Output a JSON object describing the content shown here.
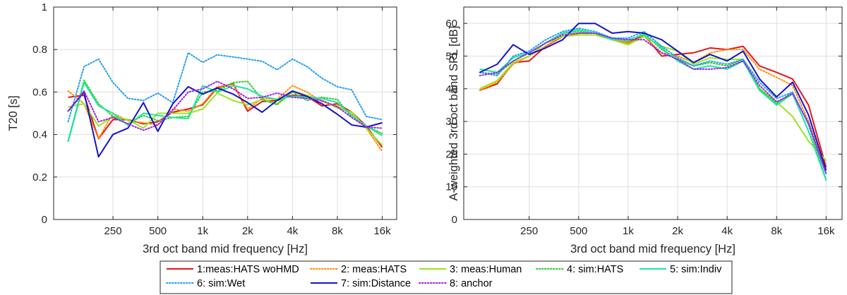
{
  "chart_data": [
    {
      "type": "line",
      "panel": "left",
      "xlabel": "3rd oct band mid frequency [Hz]",
      "ylabel": "T20 [s]",
      "ylim": [
        0,
        1
      ],
      "yticks": [
        0,
        0.2,
        0.4,
        0.6,
        0.8,
        1
      ],
      "ytick_labels": [
        "0",
        "0.2",
        "0.4",
        "0.6",
        "0.8",
        "1"
      ],
      "grid": true,
      "x": [
        125,
        160,
        200,
        250,
        315,
        400,
        500,
        630,
        800,
        1000,
        1250,
        1600,
        2000,
        2500,
        3150,
        4000,
        5000,
        6300,
        8000,
        10000,
        12500,
        16000
      ],
      "xticks": [
        250,
        500,
        1000,
        2000,
        4000,
        8000,
        16000
      ],
      "xtick_labels": [
        "250",
        "500",
        "1k",
        "2k",
        "4k",
        "8k",
        "16k"
      ],
      "series": [
        {
          "name": "1:meas:HATS woHMD",
          "values": [
            0.575,
            0.585,
            0.38,
            0.47,
            0.47,
            0.45,
            0.46,
            0.505,
            0.52,
            0.54,
            0.62,
            0.64,
            0.51,
            0.555,
            0.56,
            0.585,
            0.58,
            0.535,
            0.545,
            0.505,
            0.44,
            0.34
          ]
        },
        {
          "name": "2: meas:HATS",
          "values": [
            0.605,
            0.545,
            0.38,
            0.5,
            0.465,
            0.455,
            0.445,
            0.52,
            0.51,
            0.545,
            0.625,
            0.635,
            0.52,
            0.57,
            0.565,
            0.63,
            0.6,
            0.555,
            0.535,
            0.495,
            0.43,
            0.32
          ]
        },
        {
          "name": "3: meas:Human",
          "values": [
            0.53,
            0.545,
            0.44,
            0.485,
            0.47,
            0.43,
            0.5,
            0.5,
            0.5,
            0.52,
            0.595,
            0.56,
            0.54,
            0.565,
            0.545,
            0.605,
            0.585,
            0.56,
            0.525,
            0.505,
            0.43,
            0.35
          ]
        },
        {
          "name": "4: sim:HATS",
          "values": [
            0.37,
            0.655,
            0.545,
            0.485,
            0.45,
            0.49,
            0.465,
            0.48,
            0.485,
            0.6,
            0.605,
            0.645,
            0.65,
            0.565,
            0.54,
            0.6,
            0.56,
            0.575,
            0.565,
            0.48,
            0.44,
            0.405
          ]
        },
        {
          "name": "5: sim:Indiv",
          "values": [
            0.365,
            0.645,
            0.535,
            0.5,
            0.445,
            0.5,
            0.49,
            0.48,
            0.475,
            0.63,
            0.6,
            0.63,
            0.615,
            0.58,
            0.565,
            0.58,
            0.575,
            0.57,
            0.55,
            0.49,
            0.44,
            0.395
          ]
        },
        {
          "name": "6: sim:Wet",
          "values": [
            0.46,
            0.72,
            0.755,
            0.645,
            0.57,
            0.56,
            0.595,
            0.55,
            0.785,
            0.74,
            0.775,
            0.765,
            0.755,
            0.745,
            0.705,
            0.755,
            0.72,
            0.665,
            0.625,
            0.61,
            0.485,
            0.47
          ]
        },
        {
          "name": "7: sim:Distance",
          "values": [
            0.51,
            0.6,
            0.295,
            0.4,
            0.43,
            0.55,
            0.415,
            0.545,
            0.625,
            0.59,
            0.62,
            0.59,
            0.55,
            0.505,
            0.56,
            0.605,
            0.58,
            0.545,
            0.495,
            0.445,
            0.435,
            0.455
          ]
        },
        {
          "name": "8: anchor",
          "values": [
            0.51,
            0.605,
            0.46,
            0.48,
            0.45,
            0.42,
            0.445,
            0.515,
            0.6,
            0.615,
            0.65,
            0.615,
            0.57,
            0.575,
            0.595,
            0.575,
            0.57,
            0.56,
            0.53,
            0.48,
            0.435,
            0.43
          ]
        }
      ]
    },
    {
      "type": "line",
      "panel": "right",
      "xlabel": "3rd oct band mid frequency [Hz]",
      "ylabel": "A-weighted 3rd oct band SPL [dB]",
      "ylim": [
        0,
        65
      ],
      "yticks": [
        0,
        10,
        20,
        30,
        40,
        50,
        60
      ],
      "ytick_labels": [
        "0",
        "10",
        "20",
        "30",
        "40",
        "50",
        "60"
      ],
      "grid": true,
      "x": [
        125,
        160,
        200,
        250,
        315,
        400,
        500,
        630,
        800,
        1000,
        1250,
        1600,
        2000,
        2500,
        3150,
        4000,
        5000,
        6300,
        8000,
        10000,
        12500,
        16000
      ],
      "xticks": [
        250,
        500,
        1000,
        2000,
        4000,
        8000,
        16000
      ],
      "xtick_labels": [
        "250",
        "500",
        "1k",
        "2k",
        "4k",
        "8k",
        "16k"
      ],
      "series": [
        {
          "name": "1:meas:HATS woHMD",
          "values": [
            39.5,
            41.5,
            48,
            48.5,
            53,
            56,
            57,
            57,
            55,
            54,
            56.5,
            50,
            50.5,
            51,
            52.5,
            52,
            53,
            47,
            45,
            43,
            35,
            16
          ]
        },
        {
          "name": "2: meas:HATS",
          "values": [
            39.5,
            42,
            47.5,
            50,
            53,
            56,
            57,
            57,
            55,
            54,
            56,
            51,
            50,
            48,
            51,
            52,
            52,
            46,
            43.5,
            41,
            30,
            15
          ]
        },
        {
          "name": "3: meas:Human",
          "values": [
            40,
            42.5,
            48,
            50,
            54,
            56,
            56.5,
            56.5,
            55,
            53.5,
            56,
            53,
            51.5,
            47.5,
            49.5,
            49,
            49,
            40,
            36,
            31.5,
            24,
            18
          ]
        },
        {
          "name": "4: sim:HATS",
          "values": [
            45,
            44.5,
            48.5,
            51,
            54,
            57,
            57.5,
            57,
            55.5,
            54.5,
            57,
            52,
            49,
            47,
            48,
            47,
            49,
            40,
            35.5,
            39,
            29,
            12
          ]
        },
        {
          "name": "5: sim:Indiv",
          "values": [
            46,
            45,
            49.5,
            51,
            54,
            57,
            58,
            57,
            55,
            55,
            56.5,
            52.5,
            48.5,
            46,
            47,
            46,
            48.5,
            39.5,
            35,
            38.5,
            27,
            12
          ]
        },
        {
          "name": "6: sim:Wet",
          "values": [
            45,
            44,
            50,
            51.5,
            55,
            57.5,
            58.5,
            57.5,
            55.5,
            55.5,
            57.5,
            53,
            49.5,
            47,
            48.5,
            47.5,
            49,
            42,
            37,
            39,
            29,
            14
          ]
        },
        {
          "name": "7: sim:Distance",
          "values": [
            45,
            47.5,
            53.5,
            50.5,
            52.5,
            55,
            60,
            60,
            57,
            57.5,
            57,
            55,
            51.5,
            48,
            50.5,
            48.5,
            51.5,
            43,
            37.5,
            42,
            32,
            15
          ]
        },
        {
          "name": "8: anchor",
          "values": [
            44,
            45,
            48.5,
            51,
            54,
            56.5,
            57,
            57,
            55.5,
            55,
            55,
            51,
            49,
            46,
            46,
            46.5,
            48.5,
            41,
            36,
            38.5,
            29.5,
            14
          ]
        }
      ]
    }
  ],
  "legend": {
    "placement": "bottom-center",
    "items": [
      {
        "label": "1:meas:HATS woHMD",
        "color": "#e6161a",
        "style": "solid"
      },
      {
        "label": "2: meas:HATS",
        "color": "#ff8c00",
        "style": "dotted"
      },
      {
        "label": "3: meas:Human",
        "color": "#98e619",
        "style": "solid"
      },
      {
        "label": "4: sim:HATS",
        "color": "#2ecc2e",
        "style": "dotted"
      },
      {
        "label": "5: sim:Indiv",
        "color": "#1ee6a0",
        "style": "solid"
      },
      {
        "label": "6: sim:Wet",
        "color": "#1ea0f0",
        "style": "dotted"
      },
      {
        "label": "7: sim:Distance",
        "color": "#1414c8",
        "style": "solid"
      },
      {
        "label": "8: anchor",
        "color": "#a020f0",
        "style": "dotted"
      }
    ]
  }
}
